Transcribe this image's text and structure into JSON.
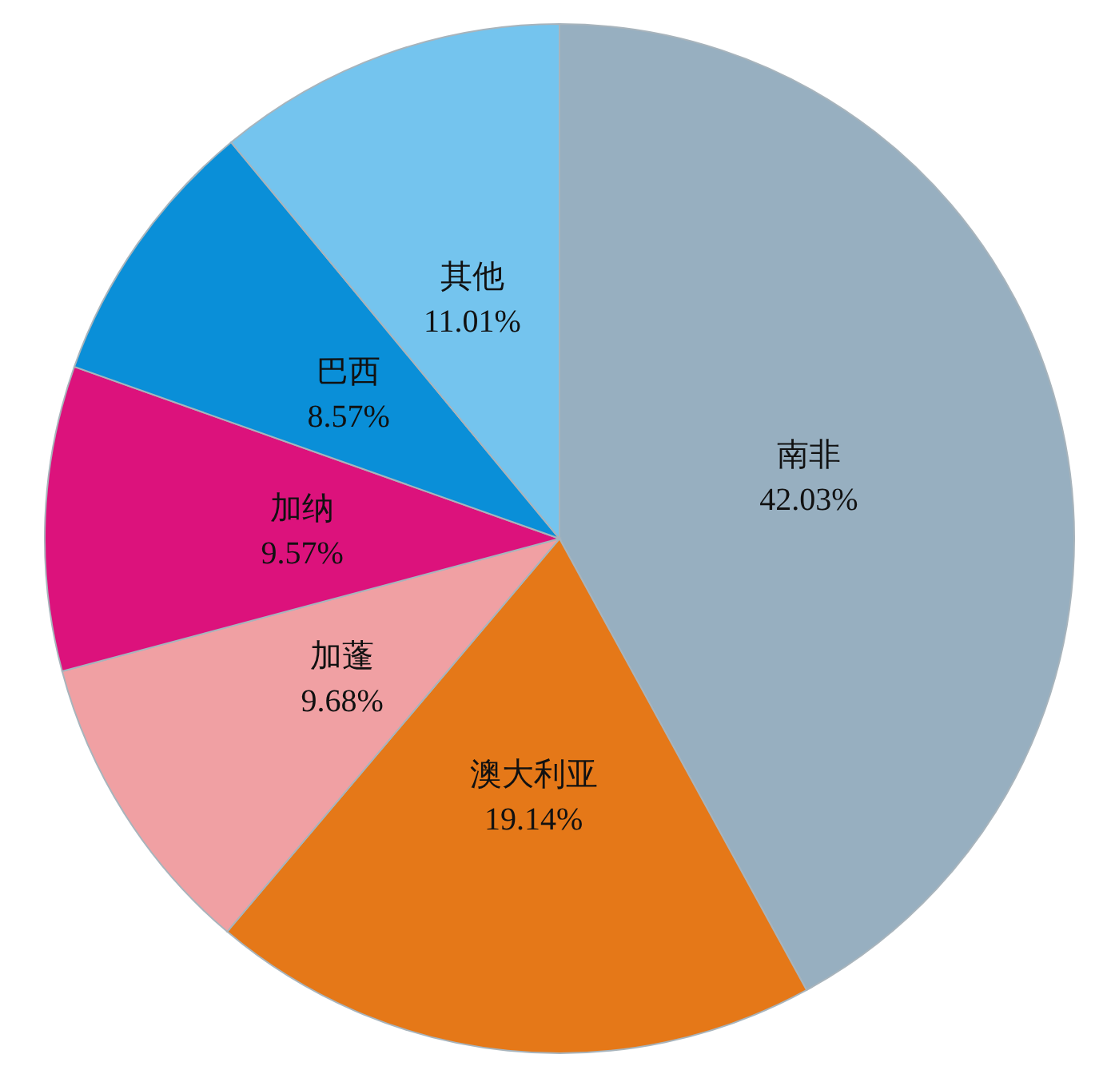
{
  "chart_data": {
    "type": "pie",
    "categories": [
      "南非",
      "澳大利亚",
      "加蓬",
      "加纳",
      "巴西",
      "其他"
    ],
    "values": [
      42.03,
      19.14,
      9.68,
      9.57,
      8.57,
      11.01
    ],
    "colors": [
      "#97afc0",
      "#e57818",
      "#f0a0a3",
      "#dc127c",
      "#0a8fd8",
      "#74c4ee"
    ],
    "value_labels": [
      "42.03%",
      "19.14%",
      "9.68%",
      "9.57%",
      "8.57%",
      "11.01%"
    ]
  }
}
